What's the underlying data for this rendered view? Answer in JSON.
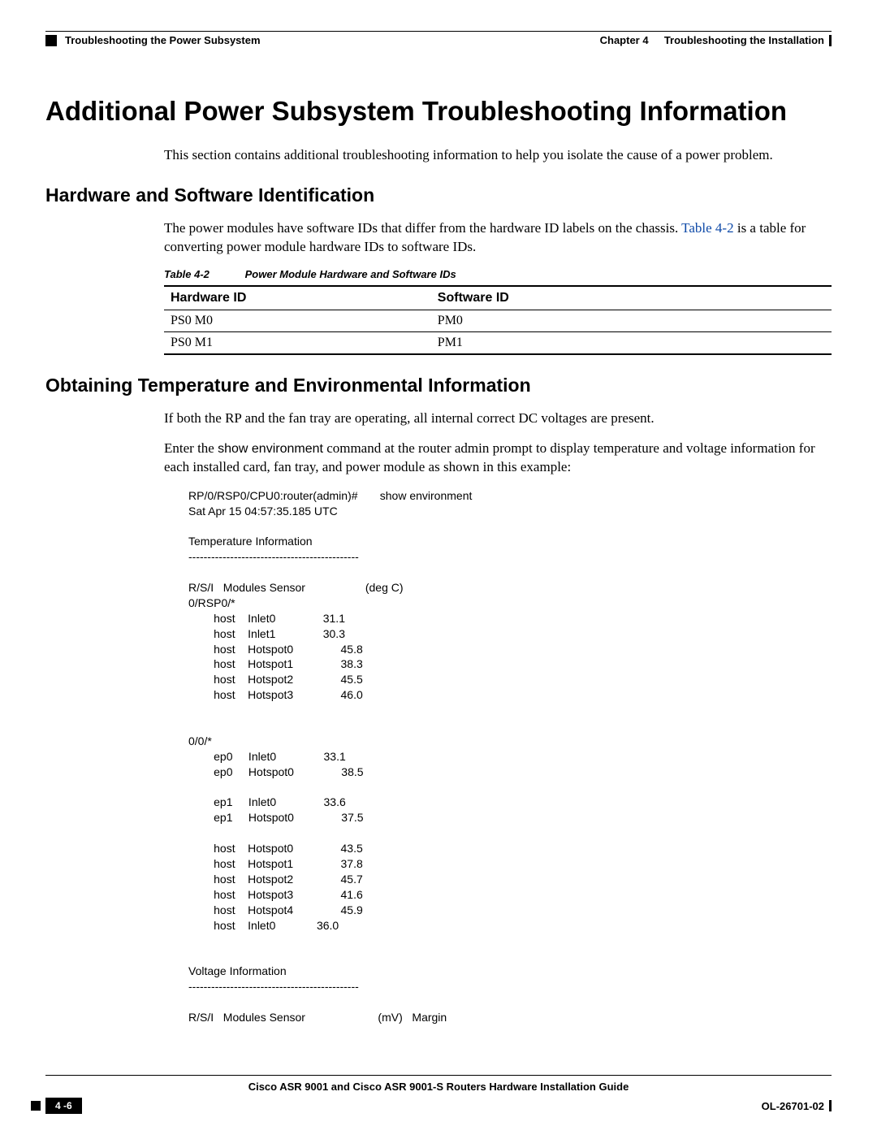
{
  "header": {
    "chapter_label": "Chapter 4",
    "chapter_title": "Troubleshooting the Installation",
    "section_title": "Troubleshooting the Power Subsystem"
  },
  "h1": "Additional Power Subsystem Troubleshooting Information",
  "intro": "This section contains additional troubleshooting information to help you isolate the cause of a power problem.",
  "h2a": "Hardware and Software Identification",
  "para_a_pre": "The power modules have software IDs that differ from the hardware ID labels on the chassis. ",
  "para_a_link": "Table 4-2",
  "para_a_post": " is a table for converting power module hardware IDs to software IDs.",
  "table": {
    "label": "Table 4-2",
    "caption": "Power Module Hardware and Software IDs",
    "columns": [
      "Hardware ID",
      "Software ID"
    ],
    "rows": [
      [
        "PS0 M0",
        "PM0"
      ],
      [
        "PS0 M1",
        "PM1"
      ]
    ]
  },
  "h2b": "Obtaining Temperature and Environmental Information",
  "para_b1": "If both the RP and the fan tray are operating, all internal correct DC voltages are present.",
  "para_b2_pre": "Enter the ",
  "para_b2_cmd": "show environment",
  "para_b2_post": " command at the router admin prompt to display temperature and voltage information for each installed card, fan tray, and power module as shown in this example:",
  "terminal": "RP/0/RSP0/CPU0:router(admin)#       show environment\nSat Apr 15 04:57:35.185 UTC\n\nTemperature Information\n---------------------------------------------\n\nR/S/I   Modules Sensor                   (deg C)\n0/RSP0/*\n        host    Inlet0               31.1\n        host    Inlet1               30.3\n        host    Hotspot0               45.8\n        host    Hotspot1               38.3\n        host    Hotspot2               45.5\n        host    Hotspot3               46.0\n\n\n0/0/*\n        ep0     Inlet0               33.1\n        ep0     Hotspot0               38.5\n\n        ep1     Inlet0               33.6\n        ep1     Hotspot0               37.5\n\n        host    Hotspot0               43.5\n        host    Hotspot1               37.8\n        host    Hotspot2               45.7\n        host    Hotspot3               41.6\n        host    Hotspot4               45.9\n        host    Inlet0             36.0\n\n\nVoltage Information\n---------------------------------------------\n\nR/S/I   Modules Sensor                       (mV)   Margin",
  "footer": {
    "guide": "Cisco ASR 9001 and Cisco ASR 9001-S Routers Hardware Installation Guide",
    "page": "4 -6",
    "docid": "OL-26701-02"
  }
}
